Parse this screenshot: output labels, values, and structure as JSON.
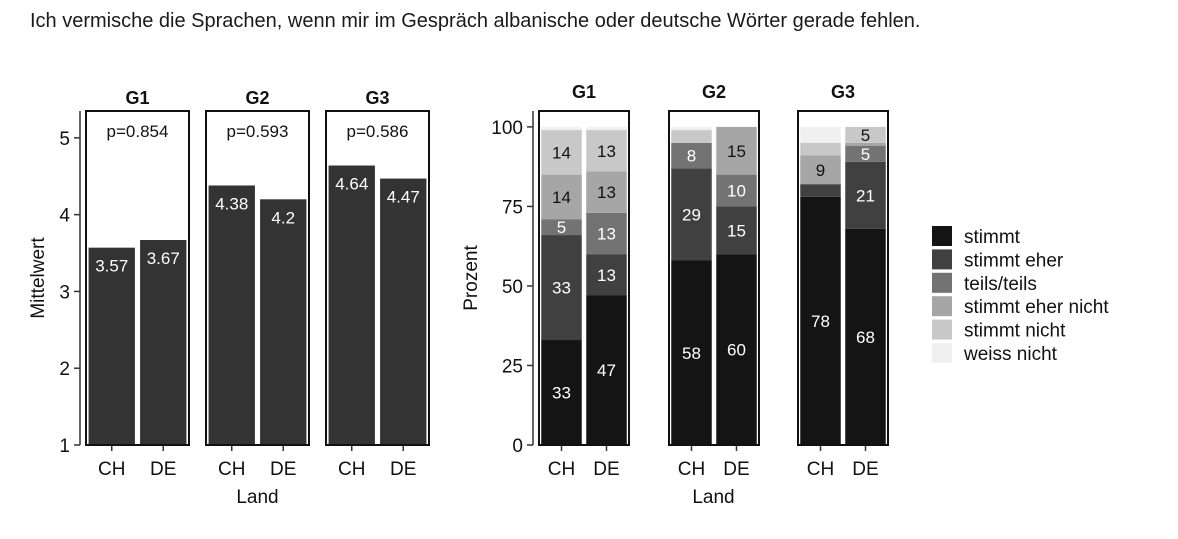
{
  "title": "Ich vermische die Sprachen, wenn mir im Gespräch albanische oder deutsche Wörter gerade fehlen.",
  "chart_data": [
    {
      "type": "bar",
      "ylabel": "Mittelwert",
      "xlabel": "Land",
      "ylim": [
        1,
        5.35
      ],
      "yticks": [
        "1",
        "2",
        "3",
        "4",
        "5"
      ],
      "categories": [
        "CH",
        "DE"
      ],
      "panels": [
        {
          "name": "G1",
          "pvalue": "p=0.854",
          "values": [
            3.57,
            3.67
          ],
          "labels": [
            "3.57",
            "3.67"
          ]
        },
        {
          "name": "G2",
          "pvalue": "p=0.593",
          "values": [
            4.38,
            4.2
          ],
          "labels": [
            "4.38",
            "4.2"
          ]
        },
        {
          "name": "G3",
          "pvalue": "p=0.586",
          "values": [
            4.64,
            4.47
          ],
          "labels": [
            "4.64",
            "4.47"
          ]
        }
      ]
    },
    {
      "type": "bar",
      "stacked": true,
      "ylabel": "Prozent",
      "xlabel": "Land",
      "ylim": [
        0,
        105
      ],
      "yticks": [
        "0",
        "25",
        "50",
        "75",
        "100"
      ],
      "categories": [
        "CH",
        "DE"
      ],
      "legend": {
        "position": "right",
        "items": [
          {
            "label": "stimmt",
            "color": "#141414"
          },
          {
            "label": "stimmt eher",
            "color": "#404040"
          },
          {
            "label": "teils/teils",
            "color": "#737373"
          },
          {
            "label": "stimmt eher nicht",
            "color": "#a6a6a6"
          },
          {
            "label": "stimmt nicht",
            "color": "#c8c8c8"
          },
          {
            "label": "weiss nicht",
            "color": "#f0f0f0"
          }
        ]
      },
      "panels": [
        {
          "name": "G1",
          "bars": [
            [
              {
                "v": 33,
                "label": "33"
              },
              {
                "v": 33,
                "label": "33"
              },
              {
                "v": 5,
                "label": "5"
              },
              {
                "v": 14,
                "label": "14"
              },
              {
                "v": 14,
                "label": "14"
              },
              {
                "v": 1,
                "label": ""
              }
            ],
            [
              {
                "v": 47,
                "label": "47"
              },
              {
                "v": 13,
                "label": "13"
              },
              {
                "v": 13,
                "label": "13"
              },
              {
                "v": 13,
                "label": "13"
              },
              {
                "v": 13,
                "label": "13"
              },
              {
                "v": 1,
                "label": ""
              }
            ]
          ]
        },
        {
          "name": "G2",
          "bars": [
            [
              {
                "v": 58,
                "label": "58"
              },
              {
                "v": 29,
                "label": "29"
              },
              {
                "v": 8,
                "label": "8"
              },
              {
                "v": 0,
                "label": ""
              },
              {
                "v": 4,
                "label": ""
              },
              {
                "v": 1,
                "label": ""
              }
            ],
            [
              {
                "v": 60,
                "label": "60"
              },
              {
                "v": 15,
                "label": "15"
              },
              {
                "v": 10,
                "label": "10"
              },
              {
                "v": 15,
                "label": "15"
              },
              {
                "v": 0,
                "label": ""
              },
              {
                "v": 0,
                "label": ""
              }
            ]
          ]
        },
        {
          "name": "G3",
          "bars": [
            [
              {
                "v": 78,
                "label": "78"
              },
              {
                "v": 4,
                "label": ""
              },
              {
                "v": 0,
                "label": ""
              },
              {
                "v": 9,
                "label": "9"
              },
              {
                "v": 4,
                "label": ""
              },
              {
                "v": 5,
                "label": ""
              }
            ],
            [
              {
                "v": 68,
                "label": "68"
              },
              {
                "v": 21,
                "label": "21"
              },
              {
                "v": 5,
                "label": "5"
              },
              {
                "v": 1,
                "label": ""
              },
              {
                "v": 5,
                "label": "5"
              },
              {
                "v": 0,
                "label": ""
              }
            ]
          ]
        }
      ]
    }
  ]
}
